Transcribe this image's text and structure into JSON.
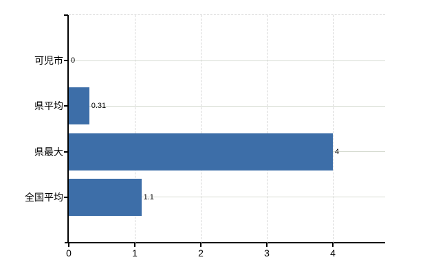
{
  "chart_data": {
    "type": "bar",
    "orientation": "horizontal",
    "title": "",
    "xlabel": "",
    "ylabel": "",
    "categories": [
      "可児市",
      "県平均",
      "県最大",
      "全国平均"
    ],
    "values": [
      0,
      0.31,
      4,
      1.1
    ],
    "value_labels": [
      "0",
      "0.31",
      "4",
      "1.1"
    ],
    "x_ticks": [
      0,
      1,
      2,
      3,
      4
    ],
    "x_tick_labels": [
      "0",
      "1",
      "2",
      "3",
      "4"
    ],
    "xlim": [
      0,
      4.79
    ],
    "grid": true,
    "legend_visible": false,
    "colors": {
      "bar": "#3d6ea8",
      "axis": "#000000",
      "grid_horizontal": "#d5dad0",
      "grid_vertical": "#d6d6d6",
      "background": "#ffffff",
      "text": "#000000"
    }
  }
}
